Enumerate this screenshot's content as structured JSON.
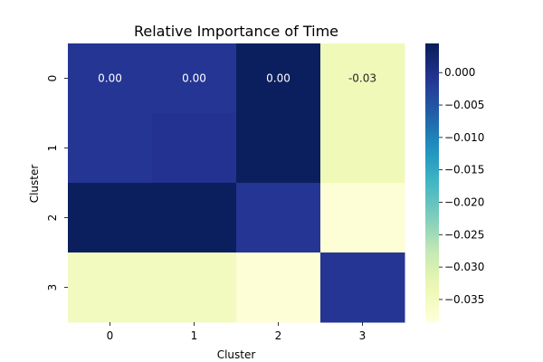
{
  "chart_data": {
    "type": "heatmap",
    "title": "Relative Importance of Time",
    "xlabel": "Cluster",
    "ylabel": "Cluster",
    "x_categories": [
      "0",
      "1",
      "2",
      "3"
    ],
    "y_categories": [
      "0",
      "1",
      "2",
      "3"
    ],
    "values": [
      [
        -0.001,
        -0.001,
        0.004,
        -0.034
      ],
      [
        -0.001,
        -0.0005,
        0.004,
        -0.034
      ],
      [
        0.004,
        0.004,
        -0.001,
        -0.038
      ],
      [
        -0.035,
        -0.035,
        -0.038,
        -0.001
      ]
    ],
    "annotations": [
      [
        "0.00",
        "0.00",
        "0.00",
        "-0.03"
      ],
      [
        "",
        "",
        "",
        ""
      ],
      [
        "",
        "",
        "",
        ""
      ],
      [
        "",
        "",
        "",
        ""
      ]
    ],
    "colorbar": {
      "cmap": "YlGnBu",
      "vmin": -0.0385,
      "vmax": 0.0045,
      "ticks": [
        "0.000",
        "-0.005",
        "-0.010",
        "-0.015",
        "-0.020",
        "-0.025",
        "-0.030",
        "-0.035"
      ],
      "tick_values": [
        0.0,
        -0.005,
        -0.01,
        -0.015,
        -0.02,
        -0.025,
        -0.03,
        -0.035
      ]
    }
  }
}
